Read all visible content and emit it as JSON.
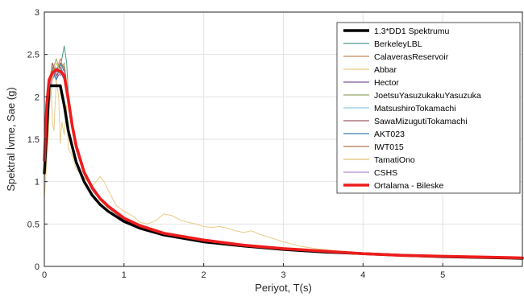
{
  "chart_data": {
    "type": "line",
    "xlabel": "Periyot, T(s)",
    "ylabel": "Spektral İvme, Sae (g)",
    "xlim": [
      0,
      6
    ],
    "ylim": [
      0,
      3
    ],
    "xticks": [
      "0",
      "1",
      "2",
      "3",
      "4",
      "5"
    ],
    "yticks": [
      "0",
      "0.5",
      "1",
      "1.5",
      "2",
      "2.5",
      "3"
    ],
    "grid": true,
    "legend_position": "top-right",
    "series": [
      {
        "name": "1.3*DD1 Spektrumu",
        "color": "#000000",
        "width": 3.4,
        "x": [
          0,
          0.03,
          0.06,
          0.2,
          0.25,
          0.3,
          0.4,
          0.5,
          0.6,
          0.7,
          0.8,
          1.0,
          1.2,
          1.5,
          2.0,
          2.5,
          3.0,
          3.5,
          4.0,
          4.5,
          5.0,
          5.5,
          6.0
        ],
        "y": [
          1.1,
          1.6,
          2.13,
          2.13,
          1.9,
          1.6,
          1.23,
          1.0,
          0.84,
          0.73,
          0.65,
          0.53,
          0.45,
          0.37,
          0.29,
          0.24,
          0.2,
          0.17,
          0.15,
          0.13,
          0.115,
          0.105,
          0.095
        ]
      },
      {
        "name": "BerkeleyLBL",
        "color": "#4a9a8c",
        "width": 1,
        "x": [
          0,
          0.05,
          0.1,
          0.15,
          0.2,
          0.25,
          0.28,
          0.3,
          0.35,
          0.4,
          0.5,
          0.6,
          0.7,
          0.8,
          1.0,
          1.2,
          1.5,
          2.0,
          2.5,
          3.0,
          3.5,
          4.0,
          4.5,
          5.0,
          5.5,
          6.0
        ],
        "y": [
          1.2,
          1.8,
          2.2,
          2.3,
          2.35,
          2.6,
          2.4,
          2.05,
          1.7,
          1.45,
          1.12,
          0.95,
          0.8,
          0.72,
          0.57,
          0.48,
          0.4,
          0.31,
          0.25,
          0.21,
          0.18,
          0.16,
          0.14,
          0.12,
          0.11,
          0.1
        ]
      },
      {
        "name": "CalaverasReservoir",
        "color": "#c8865a",
        "width": 1,
        "x": [
          0,
          0.05,
          0.1,
          0.15,
          0.2,
          0.25,
          0.3,
          0.35,
          0.4,
          0.5,
          0.6,
          0.7,
          0.8,
          1.0,
          1.2,
          1.5,
          2.0,
          2.5,
          3.0,
          3.5,
          4.0,
          4.5,
          5.0,
          5.5,
          6.0
        ],
        "y": [
          1.15,
          1.9,
          2.4,
          2.3,
          2.45,
          2.3,
          1.95,
          1.65,
          1.4,
          1.1,
          0.92,
          0.79,
          0.7,
          0.56,
          0.47,
          0.39,
          0.31,
          0.25,
          0.21,
          0.18,
          0.16,
          0.14,
          0.12,
          0.11,
          0.1
        ]
      },
      {
        "name": "Abbar",
        "color": "#e8cc88",
        "width": 1,
        "x": [
          0,
          0.05,
          0.08,
          0.1,
          0.12,
          0.15,
          0.18,
          0.2,
          0.22,
          0.25,
          0.28,
          0.3,
          0.35,
          0.4,
          0.45,
          0.5,
          0.55,
          0.6,
          0.65,
          0.7,
          0.75,
          0.8,
          0.9,
          1.0,
          1.1,
          1.2,
          1.3,
          1.4,
          1.5,
          1.6,
          1.7,
          1.8,
          1.9,
          2.0,
          2.1,
          2.2,
          2.3,
          2.4,
          2.5,
          2.6,
          2.7,
          2.8,
          2.9,
          3.0,
          3.2,
          3.4,
          3.6,
          3.8,
          4.0,
          4.5,
          5.0,
          5.5,
          6.0
        ],
        "y": [
          0.8,
          1.5,
          2.3,
          1.7,
          1.6,
          2.2,
          2.0,
          1.45,
          1.7,
          1.55,
          1.9,
          1.4,
          1.3,
          1.15,
          1.1,
          1.05,
          1.0,
          0.95,
          1.0,
          1.06,
          1.0,
          0.9,
          0.72,
          0.65,
          0.6,
          0.52,
          0.5,
          0.54,
          0.62,
          0.6,
          0.55,
          0.52,
          0.5,
          0.47,
          0.46,
          0.47,
          0.45,
          0.42,
          0.4,
          0.42,
          0.38,
          0.35,
          0.32,
          0.29,
          0.24,
          0.21,
          0.19,
          0.17,
          0.15,
          0.13,
          0.12,
          0.11,
          0.1
        ]
      },
      {
        "name": "Hector",
        "color": "#7a5a94",
        "width": 1,
        "x": [
          0,
          0.05,
          0.1,
          0.15,
          0.2,
          0.25,
          0.3,
          0.35,
          0.4,
          0.5,
          0.6,
          0.7,
          0.8,
          1.0,
          1.2,
          1.5,
          2.0,
          2.5,
          3.0,
          3.5,
          4.0,
          4.5,
          5.0,
          5.5,
          6.0
        ],
        "y": [
          1.1,
          2.0,
          2.35,
          2.2,
          2.3,
          2.2,
          1.9,
          1.6,
          1.37,
          1.08,
          0.9,
          0.78,
          0.69,
          0.55,
          0.46,
          0.38,
          0.3,
          0.25,
          0.2,
          0.17,
          0.15,
          0.13,
          0.12,
          0.11,
          0.1
        ]
      },
      {
        "name": "JoetsuYasuzukakuYasuzuka",
        "color": "#94a86a",
        "width": 1,
        "x": [
          0,
          0.05,
          0.1,
          0.15,
          0.2,
          0.25,
          0.3,
          0.35,
          0.4,
          0.5,
          0.6,
          0.7,
          0.8,
          1.0,
          1.2,
          1.5,
          2.0,
          2.5,
          3.0,
          3.5,
          4.0,
          4.5,
          5.0,
          5.5,
          6.0
        ],
        "y": [
          1.2,
          2.1,
          2.3,
          2.45,
          2.3,
          2.4,
          2.0,
          1.7,
          1.42,
          1.12,
          0.93,
          0.8,
          0.71,
          0.57,
          0.48,
          0.39,
          0.31,
          0.25,
          0.21,
          0.18,
          0.15,
          0.13,
          0.12,
          0.11,
          0.1
        ]
      },
      {
        "name": "MatsushiroTokamachi",
        "color": "#8ccbe0",
        "width": 1,
        "x": [
          0,
          0.05,
          0.1,
          0.15,
          0.2,
          0.25,
          0.3,
          0.35,
          0.4,
          0.5,
          0.6,
          0.7,
          0.8,
          1.0,
          1.2,
          1.5,
          2.0,
          2.5,
          3.0,
          3.5,
          4.0,
          4.5,
          5.0,
          5.5,
          6.0
        ],
        "y": [
          1.1,
          2.05,
          2.25,
          2.35,
          2.25,
          2.35,
          1.95,
          1.65,
          1.4,
          1.1,
          0.92,
          0.79,
          0.7,
          0.56,
          0.47,
          0.38,
          0.3,
          0.25,
          0.21,
          0.18,
          0.15,
          0.13,
          0.12,
          0.11,
          0.1
        ]
      },
      {
        "name": "SawaMizugutiTokamachi",
        "color": "#9a5a64",
        "width": 1,
        "x": [
          0,
          0.05,
          0.1,
          0.15,
          0.2,
          0.25,
          0.3,
          0.35,
          0.4,
          0.5,
          0.6,
          0.7,
          0.8,
          1.0,
          1.2,
          1.5,
          2.0,
          2.5,
          3.0,
          3.5,
          4.0,
          4.5,
          5.0,
          5.5,
          6.0
        ],
        "y": [
          1.15,
          2.0,
          2.4,
          2.25,
          2.35,
          2.25,
          1.9,
          1.62,
          1.38,
          1.09,
          0.91,
          0.78,
          0.69,
          0.56,
          0.47,
          0.38,
          0.3,
          0.25,
          0.2,
          0.17,
          0.15,
          0.13,
          0.12,
          0.11,
          0.1
        ]
      },
      {
        "name": "AKT023",
        "color": "#3c7ab4",
        "width": 1,
        "x": [
          0,
          0.05,
          0.1,
          0.15,
          0.2,
          0.25,
          0.3,
          0.35,
          0.4,
          0.5,
          0.6,
          0.7,
          0.8,
          1.0,
          1.2,
          1.5,
          2.0,
          2.5,
          3.0,
          3.5,
          4.0,
          4.5,
          5.0,
          5.5,
          6.0
        ],
        "y": [
          1.1,
          1.95,
          2.3,
          2.2,
          2.4,
          2.3,
          1.95,
          1.64,
          1.4,
          1.1,
          0.92,
          0.79,
          0.7,
          0.56,
          0.47,
          0.38,
          0.3,
          0.25,
          0.21,
          0.17,
          0.15,
          0.13,
          0.12,
          0.11,
          0.1
        ]
      },
      {
        "name": "IWT015",
        "color": "#b07850",
        "width": 1,
        "x": [
          0,
          0.05,
          0.1,
          0.15,
          0.2,
          0.25,
          0.3,
          0.35,
          0.4,
          0.5,
          0.6,
          0.7,
          0.8,
          1.0,
          1.2,
          1.5,
          2.0,
          2.5,
          3.0,
          3.5,
          4.0,
          4.5,
          5.0,
          5.5,
          6.0
        ],
        "y": [
          1.2,
          2.1,
          2.35,
          2.3,
          2.4,
          2.35,
          2.0,
          1.68,
          1.43,
          1.12,
          0.93,
          0.8,
          0.71,
          0.57,
          0.48,
          0.39,
          0.31,
          0.25,
          0.21,
          0.18,
          0.15,
          0.13,
          0.12,
          0.11,
          0.1
        ]
      },
      {
        "name": "TamatiOno",
        "color": "#e2c070",
        "width": 1,
        "x": [
          0,
          0.05,
          0.1,
          0.15,
          0.2,
          0.25,
          0.3,
          0.35,
          0.4,
          0.5,
          0.6,
          0.7,
          0.8,
          1.0,
          1.2,
          1.5,
          2.0,
          2.5,
          3.0,
          3.5,
          4.0,
          4.5,
          5.0,
          5.5,
          6.0
        ],
        "y": [
          1.0,
          1.9,
          2.2,
          2.4,
          2.3,
          2.25,
          1.92,
          1.62,
          1.38,
          1.09,
          0.91,
          0.78,
          0.69,
          0.56,
          0.47,
          0.38,
          0.3,
          0.25,
          0.21,
          0.17,
          0.15,
          0.13,
          0.12,
          0.11,
          0.1
        ]
      },
      {
        "name": "CSHS",
        "color": "#b888cc",
        "width": 1,
        "x": [
          0,
          0.05,
          0.1,
          0.15,
          0.2,
          0.25,
          0.3,
          0.35,
          0.4,
          0.5,
          0.6,
          0.7,
          0.8,
          1.0,
          1.2,
          1.5,
          2.0,
          2.5,
          3.0,
          3.5,
          4.0,
          4.5,
          5.0,
          5.5,
          6.0
        ],
        "y": [
          1.15,
          2.0,
          2.3,
          2.3,
          2.25,
          2.3,
          1.93,
          1.63,
          1.39,
          1.1,
          0.91,
          0.79,
          0.7,
          0.56,
          0.47,
          0.38,
          0.3,
          0.25,
          0.2,
          0.17,
          0.15,
          0.13,
          0.12,
          0.11,
          0.1
        ]
      },
      {
        "name": "Ortalama - Bileske",
        "color": "#ee1c1c",
        "width": 3.6,
        "x": [
          0,
          0.03,
          0.06,
          0.1,
          0.15,
          0.2,
          0.25,
          0.3,
          0.35,
          0.4,
          0.5,
          0.6,
          0.7,
          0.8,
          1.0,
          1.2,
          1.5,
          2.0,
          2.5,
          3.0,
          3.5,
          4.0,
          4.5,
          5.0,
          5.5,
          6.0
        ],
        "y": [
          1.25,
          1.9,
          2.2,
          2.28,
          2.32,
          2.3,
          2.25,
          1.97,
          1.66,
          1.42,
          1.11,
          0.93,
          0.8,
          0.71,
          0.57,
          0.48,
          0.39,
          0.31,
          0.25,
          0.21,
          0.18,
          0.15,
          0.13,
          0.12,
          0.11,
          0.1
        ]
      }
    ]
  }
}
